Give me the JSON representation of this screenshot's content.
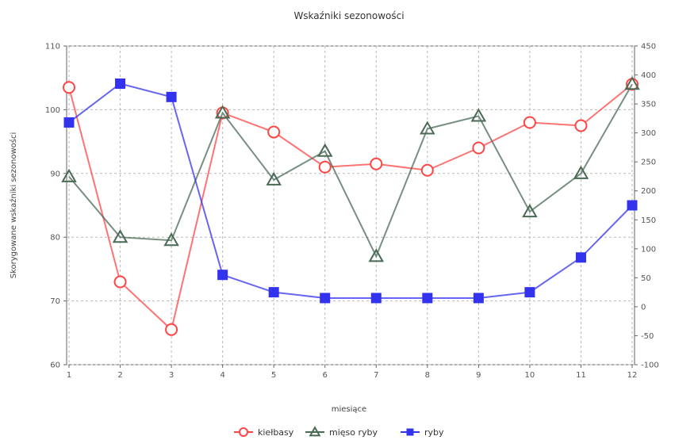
{
  "chart_data": {
    "type": "line",
    "title": "Wskaźniki sezonowości",
    "xlabel": "miesiące",
    "ylabel_left": "Skorygowane wskaźniki sezonowości",
    "ylabel_right": "",
    "x": [
      1,
      2,
      3,
      4,
      5,
      6,
      7,
      8,
      9,
      10,
      11,
      12
    ],
    "x_tick_labels": [
      "1",
      "2",
      "3",
      "4",
      "5",
      "6",
      "7",
      "8",
      "9",
      "10",
      "11",
      "12"
    ],
    "ylim_left": [
      60,
      110
    ],
    "yticks_left": [
      "60",
      "70",
      "80",
      "90",
      "100",
      "110"
    ],
    "ylim_right": [
      -100,
      450
    ],
    "yticks_right": [
      "-100",
      "-50",
      "0",
      "50",
      "100",
      "150",
      "200",
      "250",
      "300",
      "350",
      "400",
      "450"
    ],
    "grid": true,
    "legend_position": "bottom",
    "series": [
      {
        "name": "kiełbasy",
        "axis": "left",
        "color": "#ff4444",
        "marker": "circle-open",
        "values": [
          103.5,
          73,
          65.5,
          99.5,
          96.5,
          91,
          91.5,
          90.5,
          94,
          98,
          97.5,
          104
        ]
      },
      {
        "name": "mięso ryby",
        "axis": "left",
        "color": "#4a6a55",
        "marker": "triangle-open",
        "values": [
          89.5,
          80,
          79.5,
          99.5,
          89,
          93.5,
          77,
          97,
          99,
          84,
          90,
          104
        ]
      },
      {
        "name": "ryby",
        "axis": "right",
        "color": "#3333ee",
        "marker": "square-filled",
        "values": [
          318,
          385,
          362,
          55,
          25,
          15,
          15,
          15,
          15,
          25,
          85,
          175
        ]
      }
    ]
  }
}
